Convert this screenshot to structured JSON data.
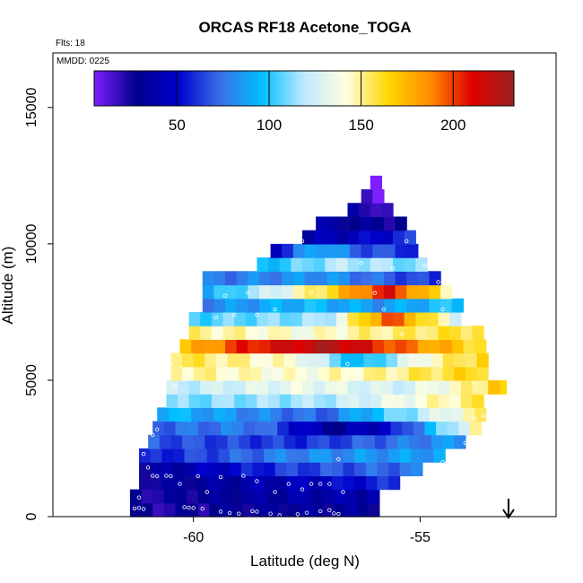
{
  "chart_data": {
    "type": "heatmap",
    "title": "ORCAS RF18 Acetone_TOGA",
    "flights_label": "Flts: 18",
    "date_label": "MMDD: 0225",
    "xlabel": "Latitude (deg N)",
    "ylabel": "Altitude (m)",
    "xlim": [
      -63.1,
      -52.0
    ],
    "ylim": [
      0,
      17000
    ],
    "x_ticks": [
      -60,
      -55
    ],
    "y_ticks": [
      0,
      5000,
      10000,
      15000
    ],
    "x_tick_labels": [
      "-60",
      "-55"
    ],
    "y_tick_labels": [
      "0",
      "5000",
      "10000",
      "15000"
    ],
    "colorbar": {
      "range": [
        5,
        233
      ],
      "ticks": [
        50,
        100,
        150,
        200
      ],
      "tick_labels": [
        "50",
        "100",
        "150",
        "200"
      ],
      "colors": [
        "#7f1fff",
        "#00008b",
        "#0000cd",
        "#3a6fe8",
        "#00bfff",
        "#bfe9ff",
        "#ffffe0",
        "#ffd700",
        "#ff8c00",
        "#e00000",
        "#9b2222"
      ]
    },
    "cell_size": {
      "lat": 0.25,
      "alt": 500
    },
    "rows": [
      {
        "alt": 250,
        "lat_min": -61.4,
        "lat_max": -56.0,
        "profile": [
          [
            0,
            22
          ],
          [
            0.5,
            30
          ],
          [
            1,
            32
          ]
        ]
      },
      {
        "alt": 750,
        "lat_min": -61.4,
        "lat_max": -55.9,
        "profile": [
          [
            0,
            24
          ],
          [
            0.5,
            35
          ],
          [
            1,
            40
          ]
        ]
      },
      {
        "alt": 1250,
        "lat_min": -61.2,
        "lat_max": -55.4,
        "profile": [
          [
            0,
            28
          ],
          [
            0.3,
            35
          ],
          [
            0.7,
            45
          ],
          [
            1,
            60
          ]
        ]
      },
      {
        "alt": 1750,
        "lat_min": -61.2,
        "lat_max": -54.9,
        "profile": [
          [
            0,
            30
          ],
          [
            0.5,
            62
          ],
          [
            1,
            75
          ]
        ]
      },
      {
        "alt": 2250,
        "lat_min": -61.2,
        "lat_max": -54.4,
        "profile": [
          [
            0,
            55
          ],
          [
            0.5,
            80
          ],
          [
            1,
            88
          ]
        ]
      },
      {
        "alt": 2750,
        "lat_min": -61.0,
        "lat_max": -53.9,
        "profile": [
          [
            0,
            68
          ],
          [
            0.5,
            60
          ],
          [
            1,
            85
          ]
        ]
      },
      {
        "alt": 3250,
        "lat_min": -60.9,
        "lat_max": -53.6,
        "profile": [
          [
            0,
            72
          ],
          [
            0.3,
            78
          ],
          [
            0.55,
            30
          ],
          [
            0.75,
            55
          ],
          [
            1,
            145
          ]
        ]
      },
      {
        "alt": 3750,
        "lat_min": -60.8,
        "lat_max": -53.5,
        "profile": [
          [
            0,
            95
          ],
          [
            0.5,
            70
          ],
          [
            1,
            150
          ]
        ]
      },
      {
        "alt": 4250,
        "lat_min": -60.6,
        "lat_max": -53.5,
        "profile": [
          [
            0,
            110
          ],
          [
            0.5,
            118
          ],
          [
            1,
            155
          ]
        ]
      },
      {
        "alt": 4750,
        "lat_min": -60.6,
        "lat_max": -53.2,
        "profile": [
          [
            0,
            120
          ],
          [
            0.4,
            135
          ],
          [
            0.7,
            125
          ],
          [
            1,
            160
          ]
        ]
      },
      {
        "alt": 5250,
        "lat_min": -60.5,
        "lat_max": -53.5,
        "profile": [
          [
            0,
            150
          ],
          [
            0.4,
            140
          ],
          [
            0.7,
            150
          ],
          [
            1,
            165
          ]
        ]
      },
      {
        "alt": 5750,
        "lat_min": -60.5,
        "lat_max": -53.5,
        "profile": [
          [
            0,
            158
          ],
          [
            0.4,
            140
          ],
          [
            0.6,
            90
          ],
          [
            0.8,
            140
          ],
          [
            1,
            165
          ]
        ]
      },
      {
        "alt": 6250,
        "lat_min": -60.3,
        "lat_max": -53.5,
        "profile": [
          [
            0,
            170
          ],
          [
            0.2,
            205
          ],
          [
            0.5,
            225
          ],
          [
            0.8,
            185
          ],
          [
            1,
            160
          ]
        ]
      },
      {
        "alt": 6750,
        "lat_min": -60.1,
        "lat_max": -53.5,
        "profile": [
          [
            0,
            150
          ],
          [
            0.4,
            140
          ],
          [
            0.6,
            150
          ],
          [
            1,
            160
          ]
        ]
      },
      {
        "alt": 7250,
        "lat_min": -60.1,
        "lat_max": -54.1,
        "profile": [
          [
            0,
            105
          ],
          [
            0.5,
            115
          ],
          [
            0.75,
            200
          ],
          [
            1,
            130
          ]
        ]
      },
      {
        "alt": 7750,
        "lat_min": -59.8,
        "lat_max": -54.1,
        "profile": [
          [
            0,
            80
          ],
          [
            0.4,
            95
          ],
          [
            0.7,
            85
          ],
          [
            1,
            100
          ]
        ]
      },
      {
        "alt": 8250,
        "lat_min": -59.8,
        "lat_max": -54.4,
        "profile": [
          [
            0,
            90
          ],
          [
            0.3,
            130
          ],
          [
            0.55,
            170
          ],
          [
            0.75,
            212
          ],
          [
            1,
            150
          ]
        ]
      },
      {
        "alt": 8750,
        "lat_min": -59.8,
        "lat_max": -54.6,
        "profile": [
          [
            0,
            75
          ],
          [
            0.5,
            85
          ],
          [
            1,
            60
          ]
        ]
      },
      {
        "alt": 9250,
        "lat_min": -58.6,
        "lat_max": -54.9,
        "profile": [
          [
            0,
            95
          ],
          [
            0.5,
            120
          ],
          [
            1,
            110
          ]
        ]
      },
      {
        "alt": 9750,
        "lat_min": -58.3,
        "lat_max": -55.1,
        "profile": [
          [
            0,
            50
          ],
          [
            0.3,
            95
          ],
          [
            0.6,
            70
          ],
          [
            1,
            60
          ]
        ]
      },
      {
        "alt": 10250,
        "lat_min": -57.6,
        "lat_max": -55.1,
        "profile": [
          [
            0,
            38
          ],
          [
            0.5,
            45
          ],
          [
            1,
            60
          ]
        ]
      },
      {
        "alt": 10750,
        "lat_min": -57.3,
        "lat_max": -55.3,
        "profile": [
          [
            0,
            35
          ],
          [
            0.5,
            30
          ],
          [
            1,
            28
          ]
        ]
      },
      {
        "alt": 11250,
        "lat_min": -56.6,
        "lat_max": -55.6,
        "profile": [
          [
            0,
            32
          ],
          [
            0.5,
            25
          ],
          [
            1,
            12
          ]
        ]
      },
      {
        "alt": 11750,
        "lat_min": -56.3,
        "lat_max": -55.9,
        "profile": [
          [
            0,
            22
          ],
          [
            1,
            10
          ]
        ]
      },
      {
        "alt": 12250,
        "lat_min": -56.1,
        "lat_max": -55.9,
        "profile": [
          [
            0,
            10
          ],
          [
            1,
            8
          ]
        ]
      },
      {
        "alt": 4750,
        "lat_min": -53.5,
        "lat_max": -53.2,
        "profile": [
          [
            0,
            165
          ],
          [
            1,
            165
          ]
        ]
      }
    ],
    "samples": [
      [
        -61.3,
        300
      ],
      [
        -61.2,
        320
      ],
      [
        -61.1,
        280
      ],
      [
        -61.2,
        700
      ],
      [
        -60.2,
        350
      ],
      [
        -60.1,
        330
      ],
      [
        -60.0,
        320
      ],
      [
        -59.8,
        290
      ],
      [
        -59.4,
        180
      ],
      [
        -59.2,
        130
      ],
      [
        -59.0,
        110
      ],
      [
        -58.7,
        200
      ],
      [
        -58.6,
        180
      ],
      [
        -58.3,
        110
      ],
      [
        -58.1,
        50
      ],
      [
        -57.7,
        90
      ],
      [
        -57.5,
        140
      ],
      [
        -57.2,
        200
      ],
      [
        -57.0,
        240
      ],
      [
        -56.9,
        120
      ],
      [
        -56.8,
        100
      ],
      [
        -60.9,
        1500
      ],
      [
        -60.8,
        1480
      ],
      [
        -60.6,
        1500
      ],
      [
        -60.5,
        1480
      ],
      [
        -60.3,
        1200
      ],
      [
        -59.9,
        1480
      ],
      [
        -59.7,
        900
      ],
      [
        -59.4,
        1450
      ],
      [
        -58.9,
        1500
      ],
      [
        -58.6,
        1300
      ],
      [
        -58.2,
        900
      ],
      [
        -57.9,
        1200
      ],
      [
        -57.6,
        1000
      ],
      [
        -57.4,
        1200
      ],
      [
        -57.2,
        1200
      ],
      [
        -57.0,
        1200
      ],
      [
        -56.7,
        900
      ],
      [
        -61.0,
        1800
      ],
      [
        -61.1,
        2300
      ],
      [
        -60.9,
        3000
      ],
      [
        -60.8,
        3200
      ],
      [
        -56.8,
        2100
      ],
      [
        -54.5,
        2000
      ],
      [
        -54.0,
        2700
      ],
      [
        -60.6,
        5300
      ],
      [
        -60.5,
        5600
      ],
      [
        -60.4,
        4800
      ],
      [
        -53.8,
        4900
      ],
      [
        -53.6,
        3700
      ],
      [
        -53.8,
        3600
      ],
      [
        -59.5,
        7300
      ],
      [
        -59.1,
        7400
      ],
      [
        -58.6,
        7400
      ],
      [
        -58.2,
        7600
      ],
      [
        -55.8,
        7600
      ],
      [
        -55.4,
        6700
      ],
      [
        -54.5,
        7600
      ],
      [
        -54.6,
        8600
      ],
      [
        -54.9,
        9200
      ],
      [
        -55.0,
        10400
      ],
      [
        -55.3,
        10100
      ],
      [
        -55.6,
        9100
      ],
      [
        -56.3,
        9300
      ],
      [
        -57.6,
        10100
      ],
      [
        -57.4,
        8200
      ],
      [
        -58.8,
        8200
      ],
      [
        -59.3,
        8100
      ],
      [
        -55.2,
        5900
      ],
      [
        -56.6,
        5600
      ],
      [
        -56.0,
        8200
      ],
      [
        -57.3,
        6600
      ]
    ],
    "annotation": {
      "type": "arrow",
      "direction": "down",
      "lat": -53.05
    }
  }
}
